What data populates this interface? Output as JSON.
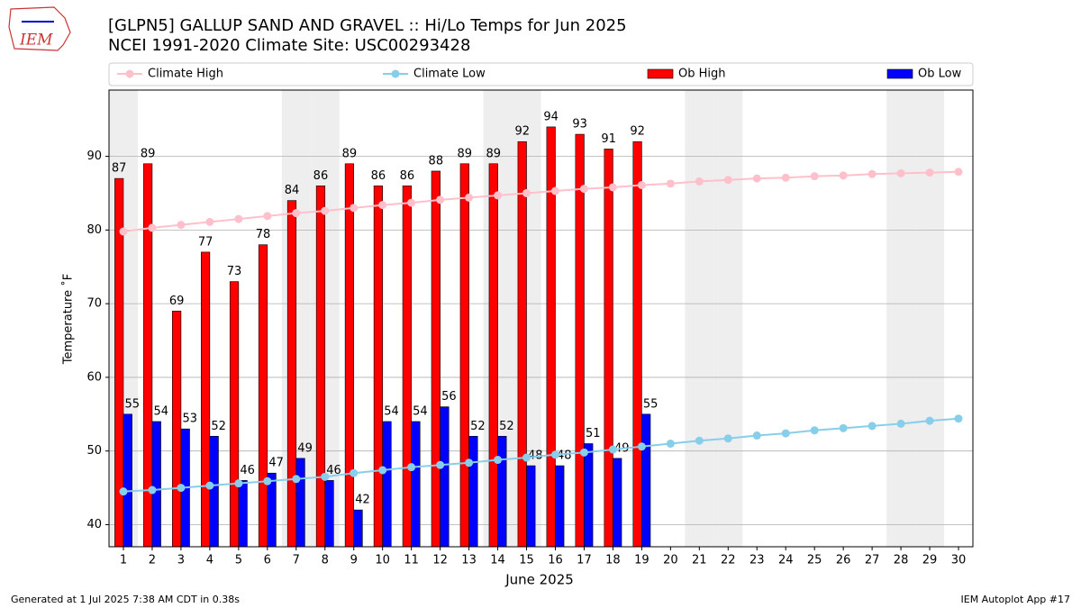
{
  "logo": "IEM",
  "chart_data": {
    "type": "bar",
    "title": "[GLPN5] GALLUP SAND AND GRAVEL :: Hi/Lo Temps for Jun 2025",
    "subtitle": "NCEI 1991-2020 Climate Site: USC00293428",
    "x_label": "June 2025",
    "y_label": "Temperature ˚F",
    "x": [
      1,
      2,
      3,
      4,
      5,
      6,
      7,
      8,
      9,
      10,
      11,
      12,
      13,
      14,
      15,
      16,
      17,
      18,
      19,
      20,
      21,
      22,
      23,
      24,
      25,
      26,
      27,
      28,
      29,
      30
    ],
    "xlim": [
      0.5,
      30.5
    ],
    "xticks": [
      1,
      2,
      3,
      4,
      5,
      6,
      7,
      8,
      9,
      10,
      11,
      12,
      13,
      14,
      15,
      16,
      17,
      18,
      19,
      20,
      21,
      22,
      23,
      24,
      25,
      26,
      27,
      28,
      29,
      30
    ],
    "ylim": [
      37,
      99
    ],
    "yticks": [
      40,
      50,
      60,
      70,
      80,
      90
    ],
    "grid": true,
    "weekend_days": [
      1,
      7,
      8,
      14,
      15,
      21,
      22,
      28,
      29
    ],
    "series": [
      {
        "name": "Climate High",
        "kind": "line",
        "color": "#ffc0cb",
        "values": [
          79.8,
          80.3,
          80.7,
          81.1,
          81.5,
          81.9,
          82.3,
          82.6,
          83.0,
          83.4,
          83.7,
          84.1,
          84.4,
          84.7,
          85.0,
          85.3,
          85.6,
          85.8,
          86.1,
          86.3,
          86.6,
          86.8,
          87.0,
          87.1,
          87.3,
          87.4,
          87.6,
          87.7,
          87.8,
          87.9
        ]
      },
      {
        "name": "Climate Low",
        "kind": "line",
        "color": "#87ceeb",
        "values": [
          44.5,
          44.7,
          45.0,
          45.3,
          45.6,
          45.9,
          46.2,
          46.5,
          47.0,
          47.4,
          47.8,
          48.1,
          48.4,
          48.8,
          49.1,
          49.5,
          49.8,
          50.2,
          50.6,
          51.0,
          51.4,
          51.7,
          52.1,
          52.4,
          52.8,
          53.1,
          53.4,
          53.7,
          54.1,
          54.4
        ]
      },
      {
        "name": "Ob High",
        "kind": "bar",
        "color": "#ff0000",
        "values": [
          87,
          89,
          69,
          77,
          73,
          78,
          84,
          86,
          89,
          86,
          86,
          88,
          89,
          89,
          92,
          94,
          93,
          91,
          92,
          null,
          null,
          null,
          null,
          null,
          null,
          null,
          null,
          null,
          null,
          null
        ]
      },
      {
        "name": "Ob Low",
        "kind": "bar",
        "color": "#0000ff",
        "values": [
          55,
          54,
          53,
          52,
          46,
          47,
          49,
          46,
          42,
          54,
          54,
          56,
          52,
          52,
          48,
          48,
          51,
          49,
          55,
          null,
          null,
          null,
          null,
          null,
          null,
          null,
          null,
          null,
          null,
          null
        ]
      }
    ],
    "footer_left": "Generated at 1 Jul 2025 7:38 AM CDT in 0.38s",
    "footer_right": "IEM Autoplot App #17"
  }
}
